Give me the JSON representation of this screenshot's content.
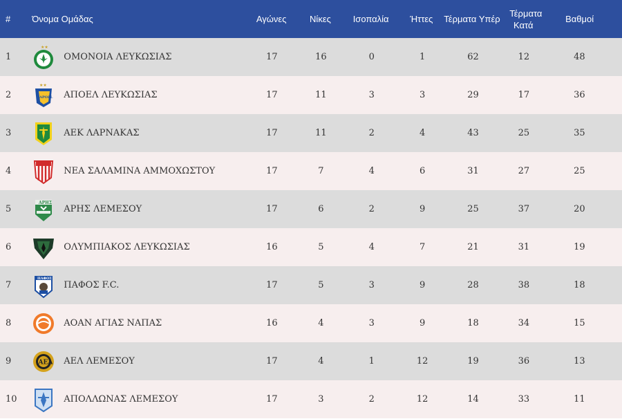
{
  "header": {
    "rank": "#",
    "team": "Όνομα Ομάδας",
    "games": "Αγώνες",
    "wins": "Νίκες",
    "draws": "Ισοπαλία",
    "losses": "Ήττες",
    "goals_for": "Τέρματα Υπέρ",
    "goals_against": "Τέρματα Κατά",
    "points": "Βαθμοί"
  },
  "rows": [
    {
      "rank": "1",
      "team": "ΟΜΟΝΟΙΑ ΛΕΥΚΩΣΙΑΣ",
      "games": "17",
      "wins": "16",
      "draws": "0",
      "losses": "1",
      "gf": "62",
      "ga": "12",
      "pts": "48",
      "logo_icon": "omonoia-crest-icon"
    },
    {
      "rank": "2",
      "team": "ΑΠΟΕΛ ΛΕΥΚΩΣΙΑΣ",
      "games": "17",
      "wins": "11",
      "draws": "3",
      "losses": "3",
      "gf": "29",
      "ga": "17",
      "pts": "36",
      "logo_icon": "apoel-crest-icon"
    },
    {
      "rank": "3",
      "team": "ΑΕΚ ΛΑΡΝΑΚΑΣ",
      "games": "17",
      "wins": "11",
      "draws": "2",
      "losses": "4",
      "gf": "43",
      "ga": "25",
      "pts": "35",
      "logo_icon": "aek-crest-icon"
    },
    {
      "rank": "4",
      "team": "ΝΕΑ ΣΑΛΑΜΙΝΑ ΑΜΜΟΧΩΣΤΟΥ",
      "games": "17",
      "wins": "7",
      "draws": "4",
      "losses": "6",
      "gf": "31",
      "ga": "27",
      "pts": "25",
      "logo_icon": "nea-salamina-crest-icon"
    },
    {
      "rank": "5",
      "team": "ΑΡΗΣ ΛΕΜΕΣΟΥ",
      "games": "17",
      "wins": "6",
      "draws": "2",
      "losses": "9",
      "gf": "25",
      "ga": "37",
      "pts": "20",
      "logo_icon": "aris-crest-icon"
    },
    {
      "rank": "6",
      "team": "ΟΛΥΜΠΙΑΚΟΣ ΛΕΥΚΩΣΙΑΣ",
      "games": "16",
      "wins": "5",
      "draws": "4",
      "losses": "7",
      "gf": "21",
      "ga": "31",
      "pts": "19",
      "logo_icon": "olympiakos-crest-icon"
    },
    {
      "rank": "7",
      "team": "ΠΑΦΟΣ F.C.",
      "games": "17",
      "wins": "5",
      "draws": "3",
      "losses": "9",
      "gf": "28",
      "ga": "38",
      "pts": "18",
      "logo_icon": "pafos-crest-icon"
    },
    {
      "rank": "8",
      "team": "ΑΟΑΝ ΑΓΙΑΣ ΝΑΠΑΣ",
      "games": "16",
      "wins": "4",
      "draws": "3",
      "losses": "9",
      "gf": "18",
      "ga": "34",
      "pts": "15",
      "logo_icon": "aoan-crest-icon"
    },
    {
      "rank": "9",
      "team": "ΑΕΛ ΛΕΜΕΣΟΥ",
      "games": "17",
      "wins": "4",
      "draws": "1",
      "losses": "12",
      "gf": "19",
      "ga": "36",
      "pts": "13",
      "logo_icon": "ael-crest-icon"
    },
    {
      "rank": "10",
      "team": "ΑΠΟΛΛΩΝΑΣ ΛΕΜΕΣΟΥ",
      "games": "17",
      "wins": "3",
      "draws": "2",
      "losses": "12",
      "gf": "14",
      "ga": "33",
      "pts": "11",
      "logo_icon": "apollon-crest-icon"
    }
  ],
  "colors": {
    "header_bg": "#2d4f9e",
    "row_odd_bg": "#dcdcdc",
    "row_even_bg": "#f7eeee",
    "text": "#333333"
  }
}
